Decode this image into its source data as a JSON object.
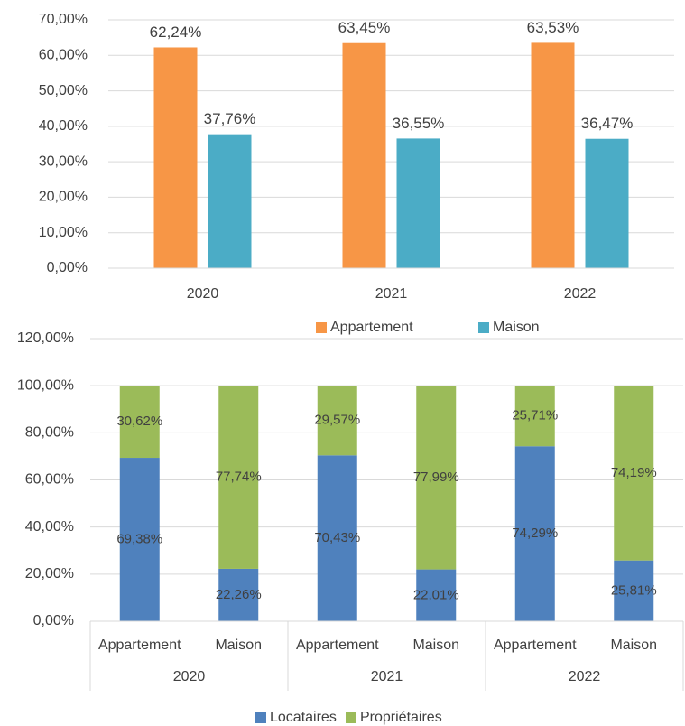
{
  "chart_data": [
    {
      "type": "bar",
      "categories": [
        "2020",
        "2021",
        "2022"
      ],
      "series": [
        {
          "name": "Appartement",
          "color": "#f79646",
          "values": [
            62.24,
            63.45,
            63.53
          ],
          "value_labels": [
            "62,24%",
            "63,45%",
            "63,53%"
          ]
        },
        {
          "name": "Maison",
          "color": "#4bacc6",
          "values": [
            37.76,
            36.55,
            36.47
          ],
          "value_labels": [
            "37,76%",
            "36,55%",
            "36,47%"
          ]
        }
      ],
      "ylim": [
        0,
        70
      ],
      "yticks": [
        {
          "value": 0,
          "label": "0,00%"
        },
        {
          "value": 10,
          "label": "10,00%"
        },
        {
          "value": 20,
          "label": "20,00%"
        },
        {
          "value": 30,
          "label": "30,00%"
        },
        {
          "value": 40,
          "label": "40,00%"
        },
        {
          "value": 50,
          "label": "50,00%"
        },
        {
          "value": 60,
          "label": "60,00%"
        },
        {
          "value": 70,
          "label": "70,00%"
        }
      ],
      "grid": true,
      "legend": "bottom"
    },
    {
      "type": "stacked_bar",
      "categories": [
        "Appartement",
        "Maison",
        "Appartement",
        "Maison",
        "Appartement",
        "Maison"
      ],
      "groups": [
        "2020",
        "2021",
        "2022"
      ],
      "series": [
        {
          "name": "Locataires",
          "color": "#4f81bd",
          "values": [
            69.38,
            22.26,
            70.43,
            22.01,
            74.29,
            25.81
          ],
          "value_labels": [
            "69,38%",
            "22,26%",
            "70,43%",
            "22,01%",
            "74,29%",
            "25,81%"
          ]
        },
        {
          "name": "Propriétaires",
          "color": "#9bbb59",
          "values": [
            30.62,
            77.74,
            29.57,
            77.99,
            25.71,
            74.19
          ],
          "value_labels": [
            "30,62%",
            "77,74%",
            "29,57%",
            "77,99%",
            "25,71%",
            "74,19%"
          ]
        }
      ],
      "ylim": [
        0,
        120
      ],
      "yticks": [
        {
          "value": 0,
          "label": "0,00%"
        },
        {
          "value": 20,
          "label": "20,00%"
        },
        {
          "value": 40,
          "label": "40,00%"
        },
        {
          "value": 60,
          "label": "60,00%"
        },
        {
          "value": 80,
          "label": "80,00%"
        },
        {
          "value": 100,
          "label": "100,00%"
        },
        {
          "value": 120,
          "label": "120,00%"
        }
      ],
      "grid": true,
      "legend": "bottom"
    }
  ]
}
